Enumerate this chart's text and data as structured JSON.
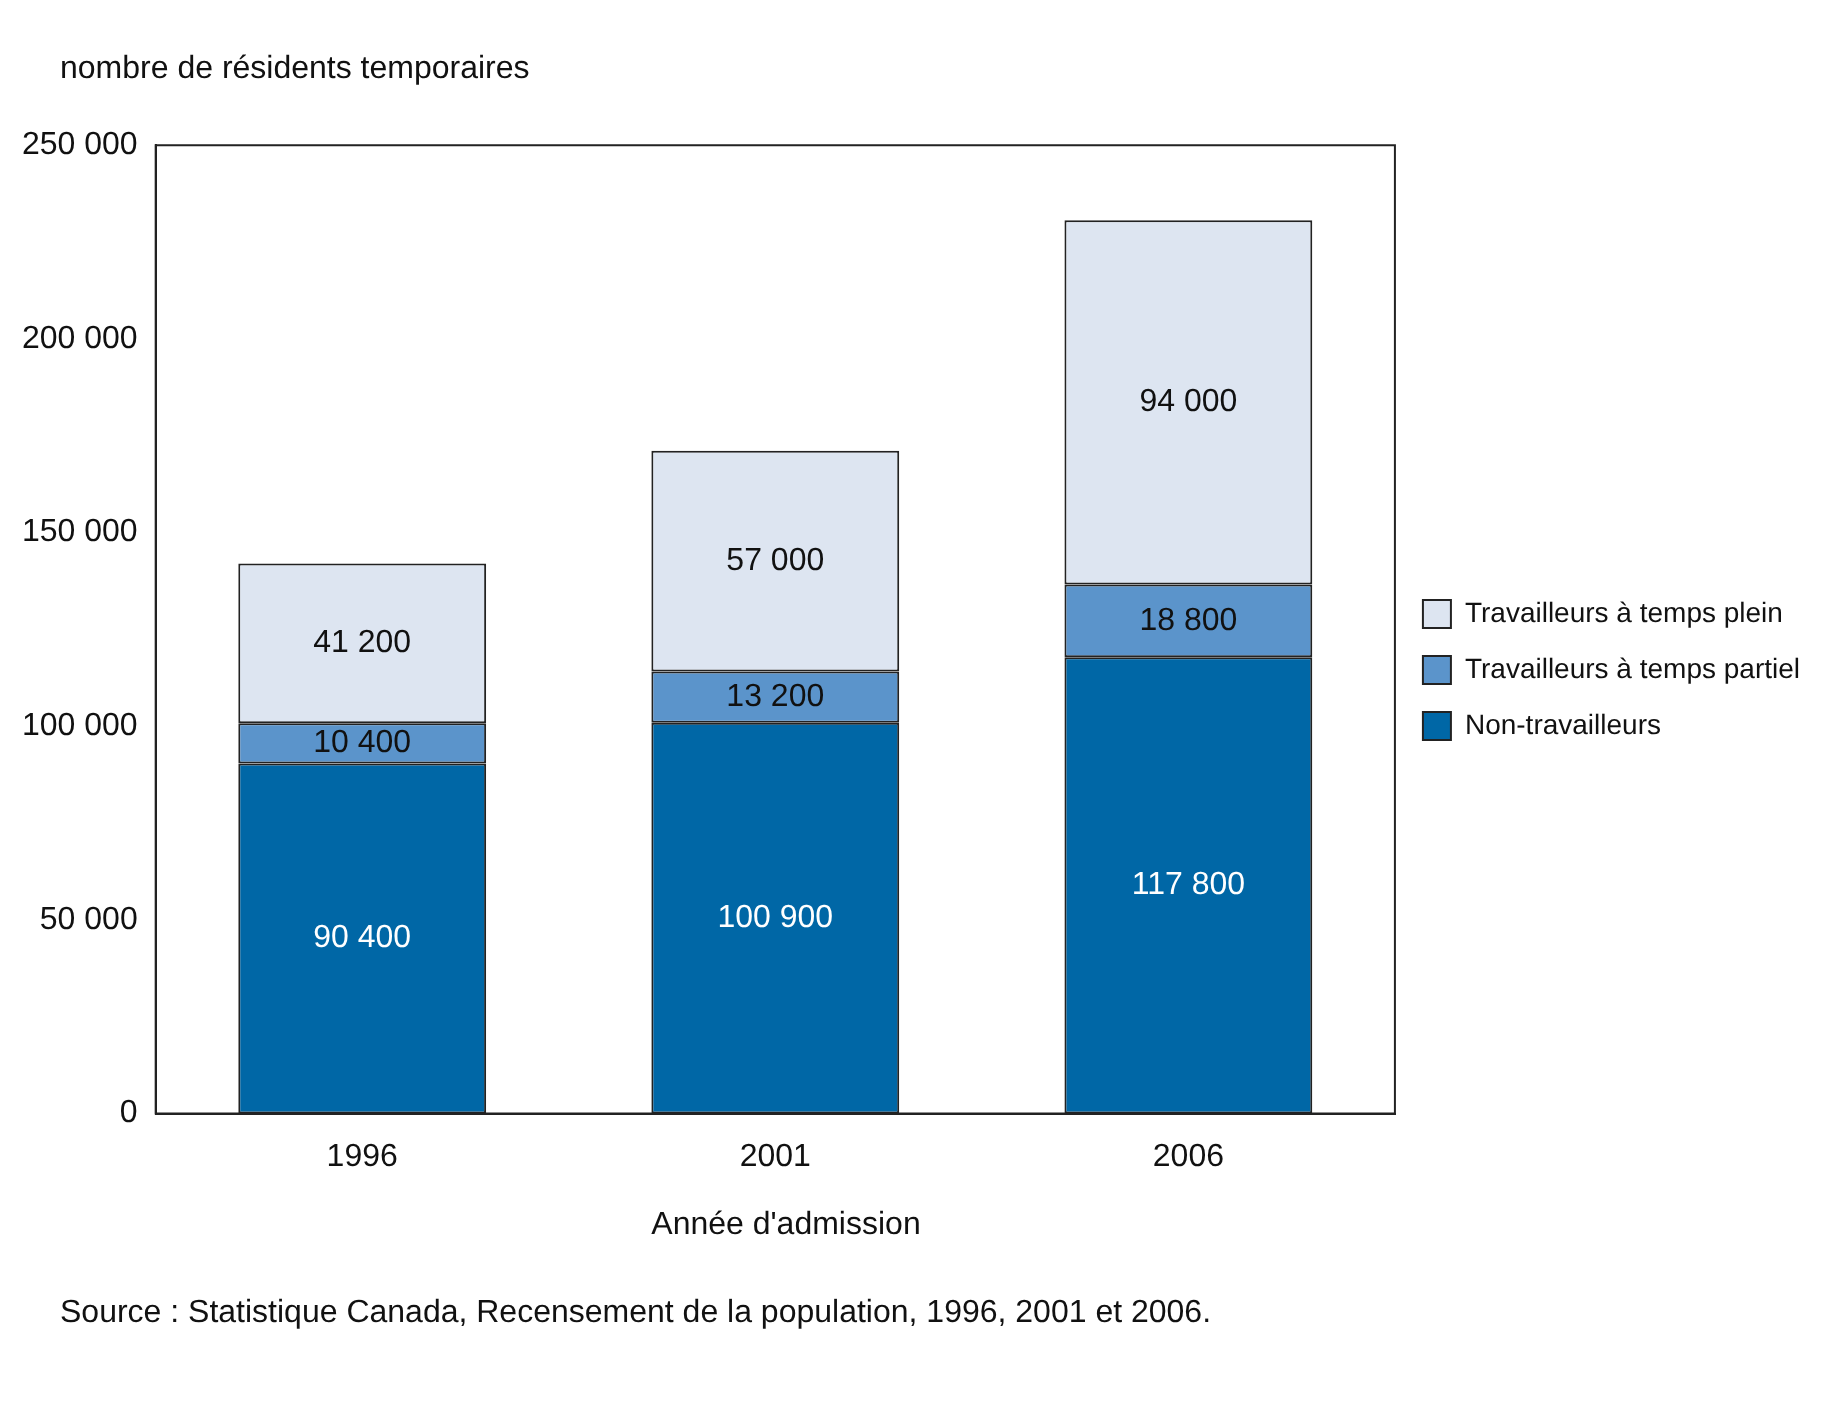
{
  "chart_data": {
    "type": "bar",
    "stacked": true,
    "ylabel": "nombre de résidents temporaires",
    "xlabel": "Année d'admission",
    "annotations": [
      "Source : Statistique Canada, Recensement de la population, 1996, 2001 et 2006."
    ],
    "categories": [
      "1996",
      "2001",
      "2006"
    ],
    "series": [
      {
        "name": "Non-travailleurs",
        "color": "#0067a6",
        "values": [
          90400,
          100900,
          117800
        ],
        "value_labels": [
          "90 400",
          "100 900",
          "117 800"
        ]
      },
      {
        "name": "Travailleurs à temps partiel",
        "color": "#5b94cb",
        "values": [
          10400,
          13200,
          18800
        ],
        "value_labels": [
          "10 400",
          "13 200",
          "18 800"
        ]
      },
      {
        "name": "Travailleurs à temps plein",
        "color": "#dde5f1",
        "values": [
          41200,
          57000,
          94000
        ],
        "value_labels": [
          "41 200",
          "57 000",
          "94 000"
        ]
      }
    ],
    "ylim": [
      0,
      250000
    ],
    "yticks": [
      0,
      {
        "value": 50000,
        "label": "50 000"
      },
      {
        "value": 100000,
        "label": "100 000"
      },
      {
        "value": 150000,
        "label": "150 000"
      },
      {
        "value": 200000,
        "label": "200 000"
      },
      {
        "value": 250000,
        "label": "250 000"
      }
    ],
    "grid": false,
    "legend": "right"
  }
}
